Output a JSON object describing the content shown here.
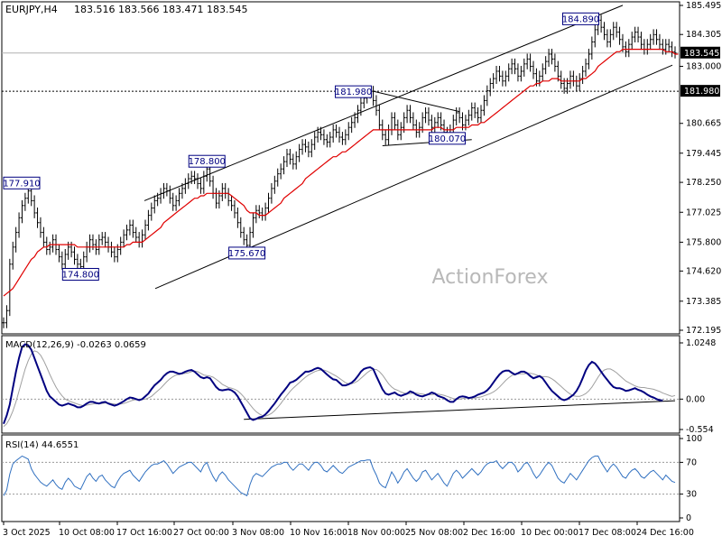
{
  "header": {
    "symbol": "EURJPY,H4",
    "ohlc": "183.516 183.566 183.471 183.545"
  },
  "watermark": "ActionForex",
  "colors": {
    "price": "#000000",
    "ma": "#e00000",
    "macd": "#000080",
    "signal": "#a0a0a0",
    "rsi": "#3070c0",
    "grid": "#c0c0c0",
    "label_border": "#000080",
    "label_text": "#000080"
  },
  "chart_data": [
    {
      "type": "line",
      "panel": "price",
      "yticks": [
        "185.495",
        "184.305",
        "183.000",
        "181.980",
        "180.665",
        "179.445",
        "178.250",
        "177.025",
        "175.800",
        "174.620",
        "173.385",
        "172.195"
      ],
      "ylim": [
        172.195,
        185.495
      ],
      "xticks": [
        "3 Oct 2025",
        "10 Oct 08:00",
        "17 Oct 16:00",
        "27 Oct 00:00",
        "3 Nov 08:00",
        "10 Nov 16:00",
        "18 Nov 00:00",
        "25 Nov 08:00",
        "2 Dec 16:00",
        "10 Dec 00:00",
        "17 Dec 08:00",
        "24 Dec 16:00"
      ],
      "current_price": "183.545",
      "level_line": "181.980",
      "annotations": [
        {
          "label": "177.910",
          "bar": 6,
          "value": 177.91
        },
        {
          "label": "174.800",
          "bar": 25,
          "value": 174.8
        },
        {
          "label": "178.800",
          "bar": 66,
          "value": 178.8
        },
        {
          "label": "175.670",
          "bar": 79,
          "value": 175.67
        },
        {
          "label": "181.980",
          "bar": 120,
          "value": 181.98
        },
        {
          "label": "180.070",
          "bar": 144,
          "value": 180.07
        },
        {
          "label": "184.890",
          "bar": 195,
          "value": 184.89
        }
      ],
      "close": [
        172.5,
        173.0,
        174.9,
        175.6,
        176.2,
        176.8,
        177.3,
        177.6,
        177.9,
        177.5,
        177.0,
        176.6,
        176.2,
        175.8,
        175.5,
        175.6,
        175.9,
        175.5,
        175.2,
        174.9,
        175.3,
        175.6,
        175.4,
        175.1,
        174.9,
        174.8,
        175.2,
        175.6,
        175.9,
        175.7,
        175.5,
        175.9,
        176.0,
        175.8,
        175.6,
        175.4,
        175.2,
        175.5,
        175.8,
        176.1,
        176.3,
        176.5,
        176.2,
        176.0,
        175.8,
        176.1,
        176.5,
        176.9,
        177.2,
        177.5,
        177.6,
        177.8,
        178.0,
        177.9,
        177.6,
        177.3,
        177.5,
        177.8,
        178.0,
        178.2,
        178.4,
        178.5,
        178.4,
        178.2,
        178.0,
        178.5,
        178.8,
        178.3,
        177.8,
        177.4,
        177.7,
        178.0,
        177.8,
        177.5,
        177.3,
        177.0,
        176.6,
        176.2,
        175.9,
        175.67,
        176.2,
        176.8,
        177.1,
        177.0,
        176.9,
        177.2,
        177.6,
        178.0,
        178.3,
        178.6,
        178.8,
        179.1,
        179.4,
        179.2,
        179.0,
        179.3,
        179.6,
        179.8,
        179.7,
        179.5,
        179.8,
        180.1,
        180.3,
        180.2,
        180.0,
        179.9,
        180.1,
        180.4,
        180.3,
        180.1,
        180.0,
        180.2,
        180.5,
        180.7,
        180.9,
        181.2,
        181.5,
        181.7,
        181.9,
        181.98,
        181.6,
        181.2,
        180.6,
        180.2,
        180.0,
        180.4,
        180.9,
        180.6,
        180.2,
        180.5,
        180.9,
        181.2,
        180.9,
        180.6,
        180.3,
        180.5,
        180.9,
        181.1,
        180.8,
        180.5,
        180.7,
        180.9,
        180.6,
        180.3,
        180.07,
        180.4,
        180.8,
        181.1,
        180.9,
        180.6,
        180.8,
        181.0,
        181.3,
        181.1,
        180.9,
        181.2,
        181.6,
        182.0,
        182.3,
        182.5,
        182.8,
        182.6,
        182.4,
        182.6,
        182.9,
        183.1,
        182.9,
        182.6,
        182.8,
        183.1,
        183.3,
        183.0,
        182.7,
        182.4,
        182.6,
        182.9,
        183.2,
        183.5,
        183.3,
        183.0,
        182.6,
        182.3,
        182.1,
        182.3,
        182.6,
        182.4,
        182.2,
        182.5,
        182.8,
        183.1,
        183.5,
        184.0,
        184.5,
        184.89,
        184.6,
        184.3,
        184.0,
        184.3,
        184.6,
        184.4,
        184.1,
        183.8,
        183.6,
        183.9,
        184.2,
        184.4,
        184.2,
        183.9,
        183.7,
        183.9,
        184.1,
        184.3,
        184.1,
        183.9,
        183.7,
        183.9,
        183.8,
        183.6,
        183.545
      ],
      "ma": [
        173.6,
        173.7,
        173.8,
        173.9,
        174.1,
        174.3,
        174.5,
        174.7,
        174.9,
        175.1,
        175.2,
        175.4,
        175.5,
        175.6,
        175.6,
        175.7,
        175.7,
        175.7,
        175.7,
        175.7,
        175.7,
        175.7,
        175.7,
        175.7,
        175.6,
        175.6,
        175.6,
        175.6,
        175.6,
        175.6,
        175.6,
        175.6,
        175.6,
        175.6,
        175.6,
        175.6,
        175.6,
        175.6,
        175.6,
        175.6,
        175.7,
        175.7,
        175.8,
        175.8,
        175.8,
        175.8,
        175.9,
        176.0,
        176.1,
        176.2,
        176.3,
        176.4,
        176.6,
        176.7,
        176.8,
        176.9,
        177.0,
        177.1,
        177.2,
        177.3,
        177.4,
        177.5,
        177.6,
        177.6,
        177.7,
        177.7,
        177.8,
        177.8,
        177.8,
        177.8,
        177.8,
        177.8,
        177.8,
        177.8,
        177.7,
        177.6,
        177.5,
        177.4,
        177.3,
        177.1,
        177.0,
        177.0,
        177.0,
        176.9,
        176.9,
        176.9,
        177.0,
        177.1,
        177.2,
        177.3,
        177.4,
        177.6,
        177.7,
        177.8,
        177.9,
        178.0,
        178.1,
        178.2,
        178.4,
        178.5,
        178.6,
        178.7,
        178.8,
        178.9,
        179.0,
        179.1,
        179.2,
        179.3,
        179.3,
        179.4,
        179.5,
        179.5,
        179.6,
        179.7,
        179.8,
        179.9,
        180.0,
        180.1,
        180.2,
        180.3,
        180.4,
        180.4,
        180.4,
        180.4,
        180.4,
        180.4,
        180.4,
        180.4,
        180.4,
        180.4,
        180.4,
        180.4,
        180.4,
        180.4,
        180.4,
        180.4,
        180.4,
        180.4,
        180.4,
        180.4,
        180.5,
        180.5,
        180.5,
        180.4,
        180.4,
        180.4,
        180.4,
        180.5,
        180.5,
        180.5,
        180.5,
        180.5,
        180.6,
        180.6,
        180.6,
        180.7,
        180.7,
        180.8,
        180.9,
        181.0,
        181.1,
        181.2,
        181.3,
        181.4,
        181.5,
        181.6,
        181.7,
        181.8,
        181.9,
        182.0,
        182.1,
        182.2,
        182.2,
        182.3,
        182.3,
        182.4,
        182.4,
        182.4,
        182.5,
        182.5,
        182.5,
        182.4,
        182.4,
        182.4,
        182.4,
        182.4,
        182.4,
        182.4,
        182.5,
        182.5,
        182.6,
        182.7,
        182.8,
        183.0,
        183.1,
        183.2,
        183.3,
        183.4,
        183.5,
        183.6,
        183.6,
        183.7,
        183.7,
        183.7,
        183.7,
        183.7,
        183.7,
        183.7,
        183.7,
        183.7,
        183.7,
        183.7,
        183.7,
        183.7,
        183.7,
        183.6,
        183.6,
        183.6,
        183.5,
        183.5
      ]
    },
    {
      "type": "line",
      "panel": "macd",
      "title": "MACD(12,26,9) -0.0263 0.0659",
      "yticks": [
        "1.0248",
        "0.00",
        "-0.554"
      ],
      "ylim": [
        -0.554,
        1.0248
      ],
      "macd": [
        -0.45,
        -0.3,
        -0.1,
        0.2,
        0.5,
        0.75,
        0.95,
        1.0,
        0.98,
        0.9,
        0.75,
        0.6,
        0.45,
        0.3,
        0.15,
        0.05,
        0.0,
        -0.05,
        -0.1,
        -0.12,
        -0.1,
        -0.08,
        -0.1,
        -0.12,
        -0.15,
        -0.15,
        -0.12,
        -0.08,
        -0.05,
        -0.05,
        -0.07,
        -0.08,
        -0.06,
        -0.05,
        -0.08,
        -0.1,
        -0.12,
        -0.1,
        -0.07,
        -0.04,
        0.0,
        0.03,
        0.02,
        0.0,
        -0.02,
        0.0,
        0.05,
        0.1,
        0.18,
        0.25,
        0.3,
        0.35,
        0.42,
        0.47,
        0.5,
        0.5,
        0.48,
        0.46,
        0.47,
        0.5,
        0.52,
        0.53,
        0.5,
        0.45,
        0.4,
        0.38,
        0.4,
        0.38,
        0.3,
        0.22,
        0.17,
        0.16,
        0.17,
        0.18,
        0.16,
        0.12,
        0.05,
        -0.05,
        -0.15,
        -0.25,
        -0.35,
        -0.38,
        -0.36,
        -0.33,
        -0.32,
        -0.28,
        -0.22,
        -0.15,
        -0.08,
        0.0,
        0.08,
        0.15,
        0.22,
        0.3,
        0.32,
        0.35,
        0.4,
        0.45,
        0.5,
        0.5,
        0.52,
        0.55,
        0.57,
        0.55,
        0.5,
        0.45,
        0.4,
        0.36,
        0.35,
        0.3,
        0.25,
        0.25,
        0.27,
        0.3,
        0.35,
        0.42,
        0.5,
        0.55,
        0.57,
        0.58,
        0.55,
        0.42,
        0.3,
        0.18,
        0.1,
        0.08,
        0.1,
        0.12,
        0.08,
        0.06,
        0.08,
        0.1,
        0.14,
        0.12,
        0.08,
        0.06,
        0.05,
        0.07,
        0.09,
        0.12,
        0.1,
        0.06,
        0.04,
        0.02,
        -0.02,
        -0.05,
        -0.05,
        0.0,
        0.04,
        0.05,
        0.04,
        0.02,
        0.03,
        0.05,
        0.08,
        0.1,
        0.12,
        0.16,
        0.22,
        0.3,
        0.38,
        0.45,
        0.5,
        0.52,
        0.52,
        0.48,
        0.45,
        0.47,
        0.5,
        0.5,
        0.47,
        0.42,
        0.38,
        0.4,
        0.42,
        0.38,
        0.3,
        0.22,
        0.15,
        0.1,
        0.05,
        0.0,
        -0.02,
        0.0,
        0.04,
        0.08,
        0.15,
        0.25,
        0.38,
        0.52,
        0.62,
        0.68,
        0.65,
        0.58,
        0.5,
        0.42,
        0.35,
        0.28,
        0.22,
        0.2,
        0.2,
        0.18,
        0.15,
        0.16,
        0.18,
        0.2,
        0.17,
        0.15,
        0.12,
        0.08,
        0.05,
        0.03,
        0.0,
        -0.02,
        -0.0263
      ],
      "signal": [
        -0.5,
        -0.45,
        -0.35,
        -0.22,
        -0.05,
        0.15,
        0.35,
        0.55,
        0.7,
        0.82,
        0.88,
        0.86,
        0.8,
        0.7,
        0.58,
        0.45,
        0.33,
        0.22,
        0.13,
        0.06,
        0.0,
        -0.03,
        -0.05,
        -0.07,
        -0.09,
        -0.11,
        -0.12,
        -0.11,
        -0.1,
        -0.09,
        -0.08,
        -0.08,
        -0.08,
        -0.07,
        -0.07,
        -0.08,
        -0.09,
        -0.1,
        -0.09,
        -0.08,
        -0.06,
        -0.04,
        -0.02,
        -0.01,
        -0.01,
        -0.01,
        0.0,
        0.02,
        0.05,
        0.1,
        0.15,
        0.2,
        0.26,
        0.32,
        0.37,
        0.41,
        0.44,
        0.45,
        0.46,
        0.47,
        0.48,
        0.5,
        0.51,
        0.5,
        0.47,
        0.44,
        0.43,
        0.42,
        0.4,
        0.36,
        0.32,
        0.27,
        0.24,
        0.21,
        0.2,
        0.18,
        0.15,
        0.1,
        0.04,
        -0.03,
        -0.1,
        -0.17,
        -0.23,
        -0.27,
        -0.3,
        -0.31,
        -0.29,
        -0.26,
        -0.21,
        -0.15,
        -0.08,
        0.0,
        0.07,
        0.14,
        0.2,
        0.25,
        0.3,
        0.35,
        0.4,
        0.44,
        0.47,
        0.5,
        0.52,
        0.53,
        0.53,
        0.51,
        0.48,
        0.45,
        0.42,
        0.38,
        0.34,
        0.3,
        0.28,
        0.28,
        0.3,
        0.33,
        0.38,
        0.43,
        0.48,
        0.52,
        0.54,
        0.54,
        0.5,
        0.44,
        0.36,
        0.28,
        0.22,
        0.18,
        0.16,
        0.13,
        0.11,
        0.1,
        0.1,
        0.11,
        0.11,
        0.1,
        0.09,
        0.08,
        0.08,
        0.08,
        0.09,
        0.09,
        0.08,
        0.07,
        0.05,
        0.03,
        0.01,
        0.0,
        0.0,
        0.01,
        0.02,
        0.02,
        0.02,
        0.02,
        0.03,
        0.04,
        0.06,
        0.08,
        0.1,
        0.13,
        0.17,
        0.22,
        0.28,
        0.34,
        0.39,
        0.43,
        0.45,
        0.46,
        0.46,
        0.46,
        0.47,
        0.47,
        0.46,
        0.44,
        0.42,
        0.41,
        0.41,
        0.4,
        0.37,
        0.33,
        0.28,
        0.23,
        0.18,
        0.13,
        0.09,
        0.06,
        0.05,
        0.05,
        0.07,
        0.1,
        0.15,
        0.22,
        0.31,
        0.4,
        0.48,
        0.53,
        0.55,
        0.55,
        0.52,
        0.48,
        0.43,
        0.38,
        0.33,
        0.3,
        0.27,
        0.24,
        0.22,
        0.21,
        0.21,
        0.2,
        0.19,
        0.18,
        0.16,
        0.14,
        0.11,
        0.09,
        0.07,
        0.05,
        0.0659
      ]
    },
    {
      "type": "line",
      "panel": "rsi",
      "title": "RSI(14) 44.6551",
      "yticks": [
        "100",
        "70",
        "30",
        "0"
      ],
      "ylim": [
        0,
        100
      ],
      "rsi": [
        28,
        35,
        55,
        68,
        72,
        75,
        78,
        76,
        74,
        62,
        55,
        50,
        45,
        42,
        40,
        44,
        48,
        42,
        38,
        36,
        45,
        50,
        46,
        40,
        38,
        36,
        44,
        52,
        56,
        50,
        46,
        52,
        54,
        48,
        44,
        40,
        38,
        46,
        52,
        56,
        58,
        60,
        54,
        50,
        46,
        52,
        58,
        62,
        66,
        68,
        68,
        70,
        72,
        68,
        62,
        56,
        60,
        64,
        66,
        68,
        70,
        70,
        66,
        62,
        58,
        66,
        70,
        60,
        52,
        46,
        54,
        58,
        54,
        48,
        44,
        40,
        36,
        32,
        30,
        28,
        42,
        52,
        56,
        54,
        52,
        56,
        60,
        64,
        66,
        68,
        68,
        70,
        70,
        64,
        60,
        64,
        68,
        68,
        64,
        60,
        66,
        70,
        70,
        66,
        60,
        58,
        62,
        66,
        62,
        58,
        56,
        60,
        64,
        66,
        68,
        70,
        72,
        72,
        73,
        73,
        62,
        54,
        44,
        40,
        38,
        48,
        58,
        52,
        44,
        50,
        58,
        62,
        56,
        50,
        46,
        50,
        58,
        60,
        54,
        48,
        52,
        56,
        50,
        44,
        40,
        48,
        56,
        60,
        56,
        50,
        54,
        58,
        62,
        58,
        54,
        58,
        64,
        68,
        70,
        70,
        72,
        66,
        62,
        66,
        70,
        70,
        66,
        58,
        62,
        68,
        70,
        64,
        56,
        50,
        54,
        60,
        66,
        70,
        66,
        58,
        50,
        46,
        44,
        50,
        56,
        52,
        48,
        54,
        60,
        66,
        72,
        76,
        78,
        78,
        70,
        64,
        58,
        64,
        68,
        64,
        58,
        52,
        50,
        56,
        60,
        62,
        58,
        52,
        50,
        54,
        58,
        60,
        56,
        52,
        48,
        54,
        50,
        46,
        44.6551
      ]
    }
  ]
}
